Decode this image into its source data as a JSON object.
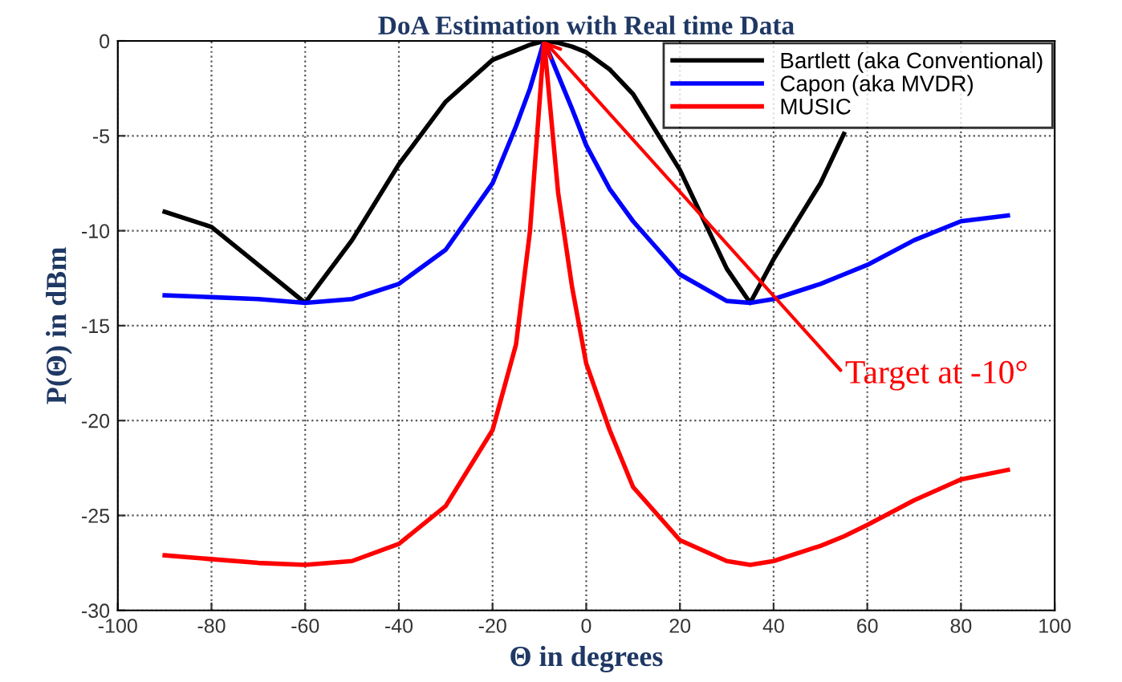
{
  "chart_data": {
    "type": "line",
    "title": "DoA Estimation with Real time Data",
    "xlabel": "Θ in degrees",
    "ylabel": "P(Θ) in dBm",
    "xlim": [
      -100,
      100
    ],
    "xticks": [
      -100,
      -80,
      -60,
      -40,
      -20,
      0,
      20,
      40,
      60,
      80,
      100
    ],
    "ylim": [
      -30,
      0
    ],
    "yticks": [
      -30,
      -25,
      -20,
      -15,
      -10,
      -5,
      0
    ],
    "grid": true,
    "legend": "top right",
    "x": [
      -90,
      -80,
      -70,
      -60,
      -50,
      -40,
      -30,
      -20,
      -15,
      -12,
      -9,
      -6,
      -3,
      0,
      5,
      10,
      20,
      30,
      35,
      40,
      50,
      55,
      60,
      70,
      80,
      90
    ],
    "series": [
      {
        "name": "Bartlett (aka Conventional)",
        "color": "#000000",
        "values": [
          -9,
          -9.8,
          -11.8,
          -13.8,
          -10.5,
          -6.5,
          -3.2,
          -1.0,
          -0.5,
          -0.2,
          0,
          -0.1,
          -0.3,
          -0.6,
          -1.5,
          -2.8,
          -6.8,
          -12,
          -13.8,
          -11.5,
          -7.5,
          -4.9,
          null,
          null,
          null,
          null
        ]
      },
      {
        "name": "Capon (aka MVDR)",
        "color": "#0000ff",
        "values": [
          -13.4,
          -13.5,
          -13.6,
          -13.8,
          -13.6,
          -12.8,
          -11,
          -7.5,
          -4.5,
          -2.5,
          0,
          -1.8,
          -3.6,
          -5.5,
          -7.8,
          -9.5,
          -12.3,
          -13.7,
          -13.8,
          -13.6,
          -12.8,
          -12.3,
          -11.8,
          -10.5,
          -9.5,
          -9.2
        ]
      },
      {
        "name": "MUSIC",
        "color": "#ff0000",
        "values": [
          -27.1,
          -27.3,
          -27.5,
          -27.6,
          -27.4,
          -26.5,
          -24.5,
          -20.5,
          -16,
          -10,
          0,
          -8,
          -13,
          -17,
          -20.5,
          -23.5,
          -26.3,
          -27.4,
          -27.6,
          -27.4,
          -26.6,
          -26.1,
          -25.5,
          -24.2,
          -23.1,
          -22.6
        ]
      }
    ],
    "annotations": [
      {
        "text": "Target at -10°",
        "x": -9,
        "y": 0
      }
    ]
  }
}
